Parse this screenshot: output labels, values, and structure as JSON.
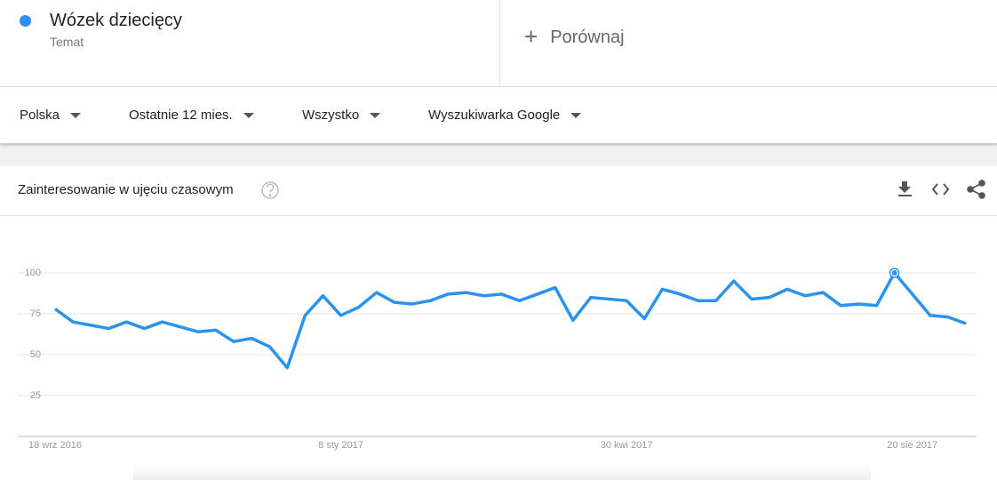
{
  "header": {
    "subtitle": "Temat",
    "compare": "Porównaj"
  },
  "filters": [
    "Polska",
    "Ostatnie 12 mies.",
    "Wszystko",
    "Wyszukiwarka Google"
  ],
  "chart_data": {
    "type": "line",
    "title": "Zainteresowanie w ujęciu czasowym",
    "categories": [
      "18 wrz 2016",
      null,
      null,
      null,
      null,
      null,
      null,
      null,
      null,
      null,
      null,
      null,
      null,
      null,
      null,
      null,
      "8 sty 2017",
      null,
      null,
      null,
      null,
      null,
      null,
      null,
      null,
      null,
      null,
      null,
      null,
      null,
      null,
      null,
      "30 kwi 2017",
      null,
      null,
      null,
      null,
      null,
      null,
      null,
      null,
      null,
      null,
      null,
      null,
      null,
      null,
      null,
      "20 sie 2017",
      null,
      null,
      null
    ],
    "series": [
      {
        "name": "Wózek dziecięcy",
        "color": "#2b93ee",
        "values": [
          78,
          70,
          68,
          66,
          70,
          66,
          70,
          67,
          64,
          65,
          58,
          60,
          55,
          42,
          74,
          86,
          74,
          79,
          88,
          82,
          81,
          83,
          87,
          88,
          86,
          87,
          83,
          87,
          91,
          71,
          85,
          84,
          83,
          72,
          90,
          87,
          83,
          83,
          95,
          84,
          85,
          90,
          86,
          88,
          80,
          81,
          80,
          100,
          87,
          74,
          73,
          69
        ]
      }
    ],
    "highlight": 47,
    "ylim": [
      0,
      100
    ],
    "yticks": [
      25,
      50,
      75,
      100
    ],
    "grid": true
  }
}
